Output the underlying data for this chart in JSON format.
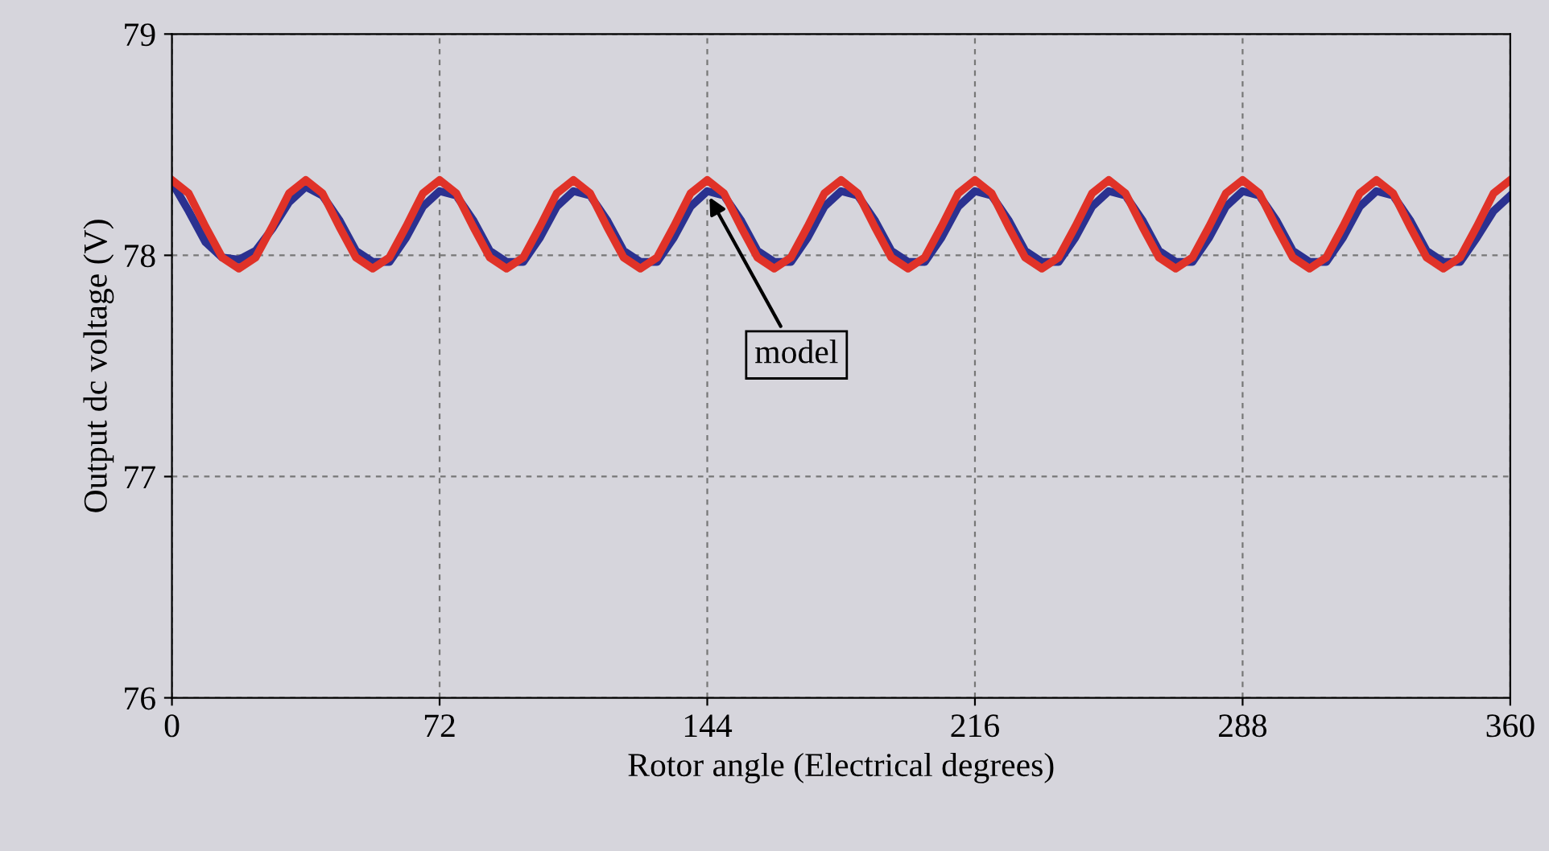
{
  "chart_data": {
    "type": "line",
    "xlabel": "Rotor angle (Electrical degrees)",
    "ylabel": "Output dc voltage (V)",
    "x": [
      0,
      4.5,
      9,
      13.5,
      18,
      22.5,
      27,
      31.5,
      36,
      40.5,
      45,
      49.5,
      54,
      58.5,
      63,
      67.5,
      72,
      76.5,
      81,
      85.5,
      90,
      94.5,
      99,
      103.5,
      108,
      112.5,
      117,
      121.5,
      126,
      130.5,
      135,
      139.5,
      144,
      148.5,
      153,
      157.5,
      162,
      166.5,
      171,
      175.5,
      180,
      184.5,
      189,
      193.5,
      198,
      202.5,
      207,
      211.5,
      216,
      220.5,
      225,
      229.5,
      234,
      238.5,
      243,
      247.5,
      252,
      256.5,
      261,
      265.5,
      270,
      274.5,
      279,
      283.5,
      288,
      292.5,
      297,
      301.5,
      306,
      310.5,
      315,
      319.5,
      324,
      328.5,
      333,
      337.5,
      342,
      346.5,
      351,
      355.5,
      360
    ],
    "series": [
      {
        "color": "#2b3190",
        "values": [
          78.33,
          78.2,
          78.06,
          77.99,
          77.98,
          78.02,
          78.12,
          78.24,
          78.31,
          78.27,
          78.16,
          78.02,
          77.97,
          77.97,
          78.08,
          78.22,
          78.29,
          78.27,
          78.16,
          78.02,
          77.97,
          77.97,
          78.08,
          78.22,
          78.29,
          78.27,
          78.16,
          78.02,
          77.97,
          77.97,
          78.08,
          78.22,
          78.29,
          78.27,
          78.16,
          78.02,
          77.97,
          77.97,
          78.08,
          78.22,
          78.29,
          78.27,
          78.16,
          78.02,
          77.97,
          77.97,
          78.08,
          78.22,
          78.29,
          78.27,
          78.16,
          78.02,
          77.97,
          77.97,
          78.08,
          78.22,
          78.29,
          78.27,
          78.16,
          78.02,
          77.97,
          77.97,
          78.08,
          78.22,
          78.29,
          78.27,
          78.16,
          78.02,
          77.97,
          77.97,
          78.08,
          78.22,
          78.29,
          78.27,
          78.16,
          78.02,
          77.97,
          77.97,
          78.08,
          78.2,
          78.27
        ]
      },
      {
        "color": "#e03228",
        "values": [
          78.34,
          78.28,
          78.13,
          77.99,
          77.94,
          77.99,
          78.13,
          78.28,
          78.34,
          78.28,
          78.13,
          77.99,
          77.94,
          77.99,
          78.13,
          78.28,
          78.34,
          78.28,
          78.13,
          77.99,
          77.94,
          77.99,
          78.13,
          78.28,
          78.34,
          78.28,
          78.13,
          77.99,
          77.94,
          77.99,
          78.13,
          78.28,
          78.34,
          78.28,
          78.13,
          77.99,
          77.94,
          77.99,
          78.13,
          78.28,
          78.34,
          78.28,
          78.13,
          77.99,
          77.94,
          77.99,
          78.13,
          78.28,
          78.34,
          78.28,
          78.13,
          77.99,
          77.94,
          77.99,
          78.13,
          78.28,
          78.34,
          78.28,
          78.13,
          77.99,
          77.94,
          77.99,
          78.13,
          78.28,
          78.34,
          78.28,
          78.13,
          77.99,
          77.94,
          77.99,
          78.13,
          78.28,
          78.34,
          78.28,
          78.13,
          77.99,
          77.94,
          77.99,
          78.13,
          78.28,
          78.34
        ]
      }
    ],
    "annotations": [
      {
        "text": "model",
        "x": 144,
        "y": 78.28
      }
    ],
    "xlim": [
      0,
      360
    ],
    "xticks": [
      0,
      72,
      144,
      216,
      288,
      360
    ],
    "ylim": [
      76,
      79
    ],
    "yticks": [
      76,
      77,
      78,
      79
    ],
    "grid": true,
    "line_style": "solid",
    "marker": "none"
  }
}
